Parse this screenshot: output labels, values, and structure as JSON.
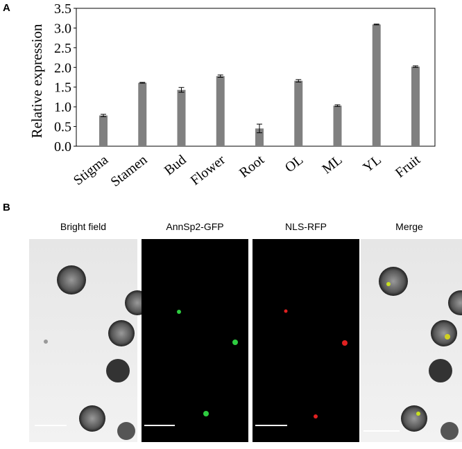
{
  "chart_data": {
    "type": "bar",
    "panel_label": "A",
    "y_label": "Relative expression",
    "categories": [
      "Stigma",
      "Stamen",
      "Bud",
      "Flower",
      "Root",
      "OL",
      "ML",
      "YL",
      "Fruit"
    ],
    "values": [
      0.78,
      1.61,
      1.43,
      1.78,
      0.45,
      1.66,
      1.03,
      3.09,
      2.02
    ],
    "errors": [
      0.03,
      0.01,
      0.06,
      0.03,
      0.11,
      0.03,
      0.02,
      0.01,
      0.02
    ],
    "color": "#808080",
    "ylim": [
      0,
      3.5
    ],
    "yticks": [
      {
        "value": 0,
        "label": "0.0"
      },
      0.5,
      {
        "value": 1,
        "label": "1.0"
      },
      1.5,
      {
        "value": 2,
        "label": "2.0"
      },
      2.5,
      {
        "value": 3,
        "label": "3.0"
      },
      3.5
    ]
  },
  "panel_b": {
    "label": "B",
    "titles": [
      "Bright field",
      "AnnSp2-GFP",
      "NLS-RFP",
      "Merge"
    ]
  }
}
